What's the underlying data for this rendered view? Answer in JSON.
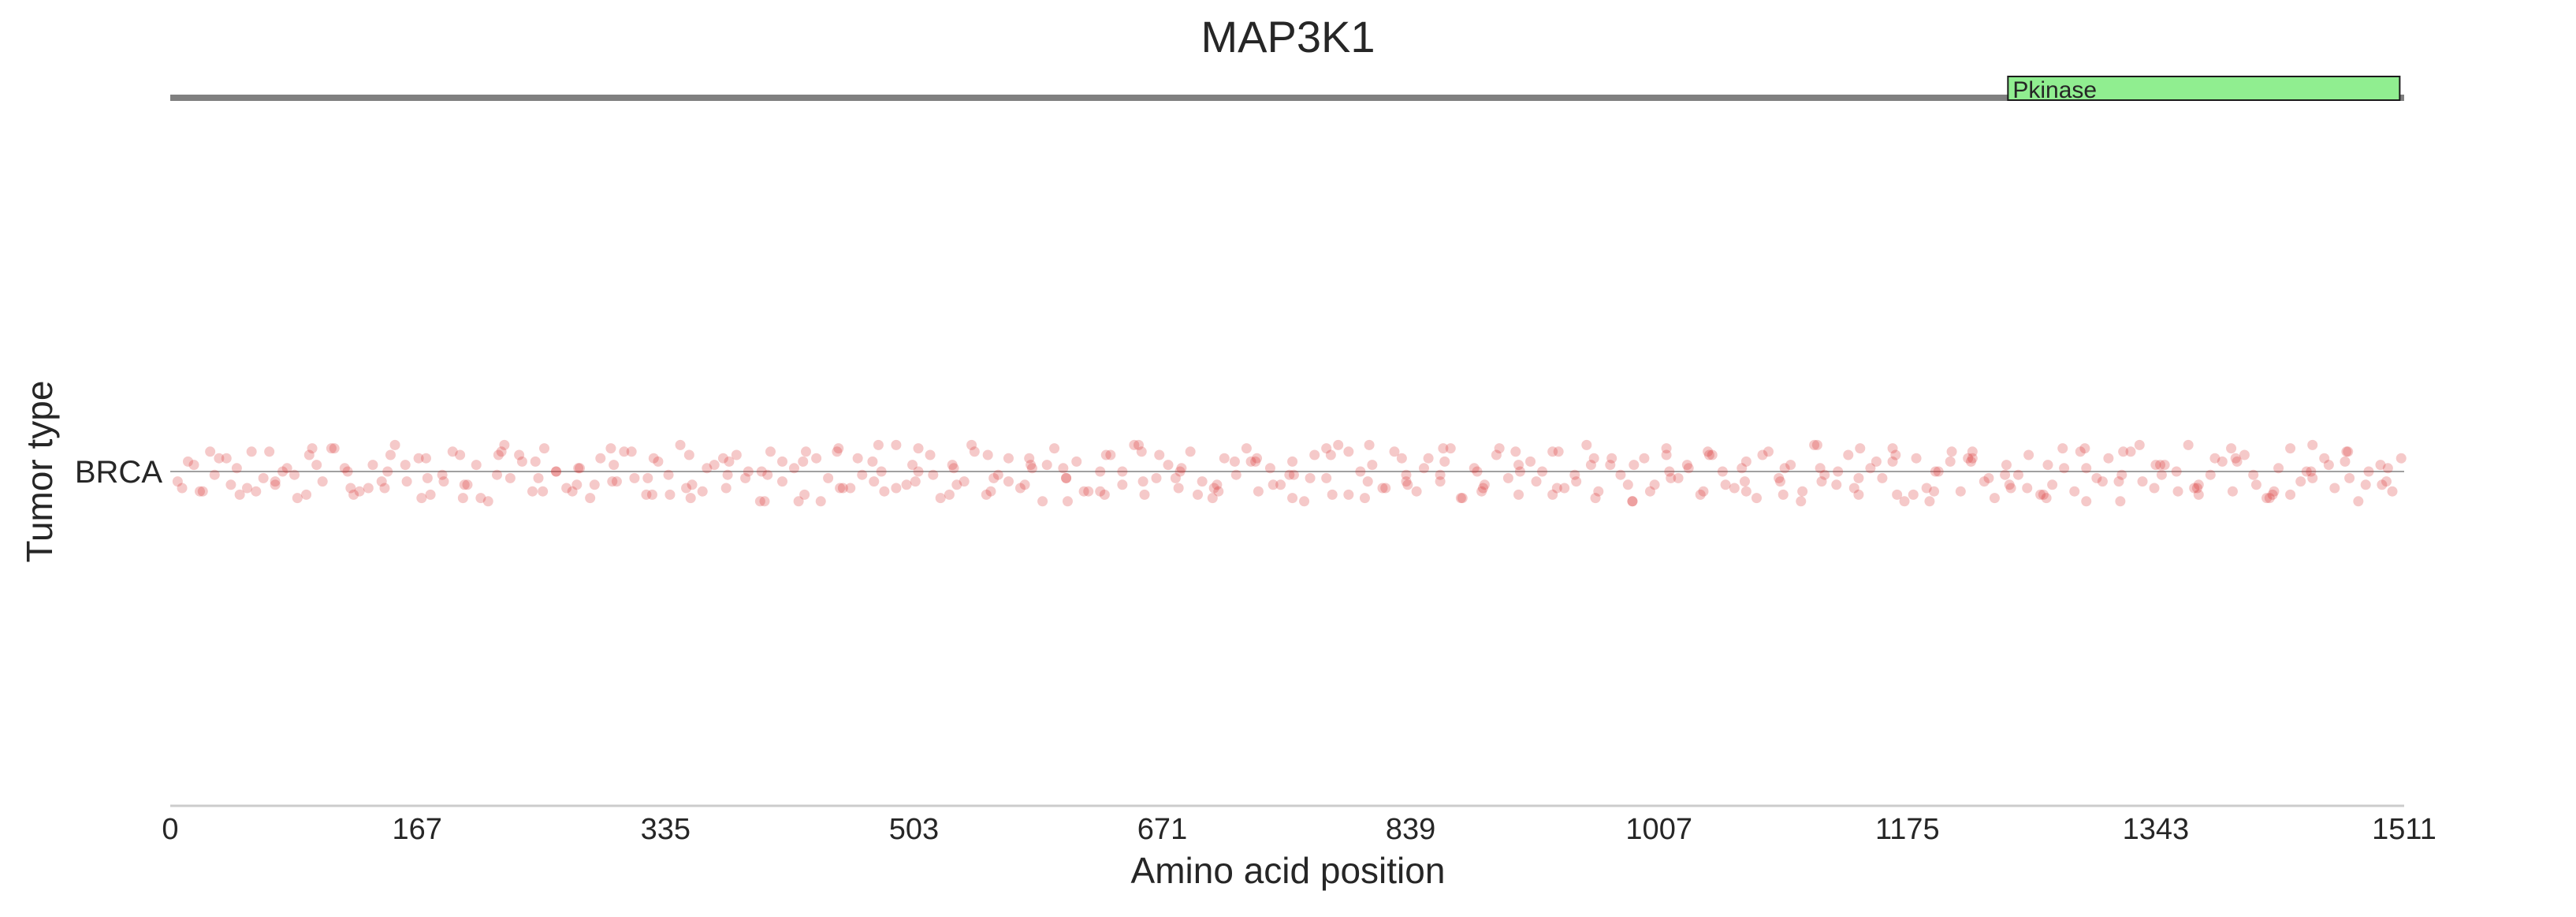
{
  "chart_data": {
    "type": "scatter",
    "title": "MAP3K1",
    "xlabel": "Amino acid position",
    "ylabel": "Tumor type",
    "xlim": [
      0,
      1511
    ],
    "xticks": [
      "0",
      "167",
      "335",
      "503",
      "671",
      "839",
      "1007",
      "1175",
      "1343",
      "1511"
    ],
    "categories": [
      "BRCA"
    ],
    "grid": false,
    "legend": "none",
    "domains": [
      {
        "name": "Pkinase",
        "start": 1243,
        "end": 1508,
        "color": "#90ee90"
      }
    ],
    "point_color": "#d62728",
    "point_alpha": 0.25,
    "series": [
      {
        "category": "BRCA",
        "x": [
          8,
          12,
          22,
          30,
          38,
          47,
          55,
          63,
          71,
          79,
          86,
          94,
          103,
          111,
          120,
          128,
          137,
          145,
          152,
          160,
          168,
          176,
          184,
          191,
          199,
          207,
          215,
          222,
          230,
          238,
          245,
          253,
          261,
          268,
          276,
          284,
          291,
          299,
          307,
          314,
          322,
          330,
          337,
          345,
          353,
          360,
          368,
          376,
          383,
          391,
          399,
          406,
          414,
          422,
          429,
          437,
          445,
          452,
          460,
          468,
          475,
          483,
          491,
          498,
          506,
          514,
          521,
          529,
          537,
          544,
          552,
          560,
          567,
          575,
          583,
          590,
          598,
          606,
          613,
          621,
          629,
          636,
          644,
          652,
          659,
          667,
          675,
          682,
          690,
          698,
          705,
          713,
          721,
          728,
          736,
          744,
          751,
          759,
          767,
          774,
          782,
          790,
          797,
          805,
          813,
          820,
          828,
          836,
          843,
          851,
          859,
          866,
          874,
          882,
          889,
          897,
          905,
          912,
          920,
          928,
          935,
          943,
          951,
          958,
          966,
          974,
          981,
          989,
          997,
          1004,
          1012,
          1020,
          1027,
          1035,
          1043,
          1050,
          1058,
          1066,
          1073,
          1081,
          1089,
          1096,
          1104,
          1112,
          1119,
          1127,
          1135,
          1142,
          1150,
          1158,
          1165,
          1173,
          1181,
          1188,
          1196,
          1204,
          1211,
          1219,
          1227,
          1234,
          1242,
          1250,
          1257,
          1265,
          1273,
          1280,
          1288,
          1296,
          1303,
          1311,
          1319,
          1326,
          1334,
          1342,
          1349,
          1357,
          1365,
          1372,
          1380,
          1388,
          1395,
          1403,
          1411,
          1418,
          1426,
          1434,
          1441,
          1449,
          1457,
          1464,
          1472,
          1480,
          1487,
          1495,
          1503,
          1509,
          16,
          41,
          67,
          92,
          118,
          143,
          170,
          196,
          221,
          247,
          272,
          298,
          323,
          349,
          374,
          400,
          425,
          451,
          476,
          502,
          527,
          553,
          578,
          604,
          629,
          655,
          680,
          706,
          731,
          757,
          782,
          808,
          833,
          859,
          884,
          910,
          935,
          961,
          986,
          1012,
          1037,
          1063,
          1088,
          1114,
          1139,
          1165,
          1190,
          1216,
          1241,
          1267,
          1292,
          1318,
          1343,
          1369,
          1394,
          1420,
          1445,
          1471,
          1496,
          5,
          27,
          52,
          76,
          99,
          124,
          149,
          174,
          201,
          226,
          252,
          277,
          302,
          327,
          352,
          378,
          404,
          430,
          455,
          481,
          506,
          532,
          557,
          582,
          607,
          633,
          658,
          684,
          709,
          735,
          760,
          786,
          811,
          837,
          862,
          888,
          913,
          939,
          964,
          990,
          1015,
          1041,
          1066,
          1092,
          1117,
          1143,
          1168,
          1194,
          1219,
          1245,
          1270,
          1296,
          1321,
          1347,
          1372,
          1398,
          1423,
          1449,
          1474,
          1500,
          33,
          58,
          84,
          109,
          134,
          159,
          185,
          210,
          236,
          261,
          287,
          312,
          338,
          363,
          389,
          414,
          440,
          465,
          491,
          516,
          542,
          567,
          593,
          618,
          644,
          669,
          695,
          720,
          746,
          771,
          797,
          822,
          848,
          873,
          899,
          924,
          950,
          975,
          1001,
          1026,
          1052,
          1077,
          1103,
          1128,
          1154,
          1179,
          1205,
          1230,
          1256,
          1281,
          1307,
          1332,
          1358,
          1383,
          1409,
          1434,
          1460,
          1485,
          20,
          45,
          71,
          96,
          122,
          147,
          173,
          198,
          224,
          249,
          275,
          300,
          326,
          351,
          377,
          402,
          428,
          453,
          479,
          504,
          530,
          555,
          581,
          606,
          632,
          657,
          683,
          708,
          734,
          759,
          785,
          810,
          836,
          861,
          887,
          912,
          938,
          963,
          989,
          1014,
          1040,
          1065,
          1091,
          1116,
          1142,
          1167,
          1193,
          1218,
          1244,
          1269,
          1295,
          1320,
          1346,
          1371,
          1397,
          1422,
          1448,
          1473,
          1499
        ],
        "jitter": [
          0.5,
          -0.3,
          0.6,
          0.1,
          -0.4,
          0.7,
          -0.6,
          0.2,
          0.4,
          -0.1,
          0.8,
          -0.5,
          0.3,
          -0.7,
          0.0,
          0.6,
          -0.2,
          0.5,
          -0.8,
          0.3,
          -0.4,
          0.7,
          0.1,
          -0.6,
          0.4,
          -0.2,
          0.9,
          -0.5,
          0.2,
          -0.3,
          0.6,
          -0.7,
          0.0,
          0.5,
          -0.1,
          0.8,
          -0.4,
          0.3,
          -0.6,
          0.2,
          0.7,
          -0.3,
          0.1,
          -0.8,
          0.4,
          0.6,
          -0.2,
          0.5,
          -0.5,
          0.0,
          0.9,
          -0.6,
          0.3,
          -0.1,
          0.7,
          -0.4,
          0.2,
          -0.7,
          0.5,
          0.1,
          -0.3,
          0.6,
          -0.8,
          0.4,
          0.0,
          -0.5,
          0.8,
          -0.2,
          0.3,
          -0.6,
          0.7,
          0.1,
          -0.4,
          0.5,
          -0.1,
          0.9,
          -0.7,
          0.2,
          -0.3,
          0.6,
          0.0,
          -0.5,
          0.4,
          -0.8,
          0.7,
          0.2,
          -0.2,
          0.5,
          -0.6,
          0.3,
          0.8,
          -0.4,
          0.1,
          -0.7,
          0.6,
          -0.1,
          0.4,
          -0.3,
          0.9,
          -0.5,
          0.2,
          -0.8,
          0.7,
          0.0,
          -0.2,
          0.5,
          -0.6,
          0.3,
          0.6,
          -0.4,
          0.1,
          -0.7,
          0.8,
          -0.1,
          0.4,
          -0.5,
          0.2,
          0.7,
          -0.3,
          0.0,
          -0.6,
          0.5,
          0.3,
          -0.8,
          0.6,
          -0.2,
          0.1,
          0.9,
          -0.4,
          0.4,
          -0.7,
          0.2,
          -0.1,
          0.7,
          -0.5,
          0.0,
          0.5,
          -0.3,
          0.8,
          -0.6,
          0.3,
          -0.2,
          0.6,
          -0.8,
          0.1,
          0.4,
          -0.5,
          0.7,
          -0.1,
          0.2,
          -0.7,
          0.9,
          -0.4,
          0.5,
          0.0,
          -0.3,
          0.6,
          -0.6,
          0.3,
          0.8,
          -0.2,
          0.1,
          -0.5,
          0.7,
          0.4,
          -0.7,
          0.6,
          -0.1,
          0.2,
          -0.4,
          0.9,
          -0.6,
          0.3,
          0.5,
          -0.2,
          0.0,
          -0.8,
          0.7,
          0.1,
          -0.3,
          0.6,
          -0.5,
          0.4,
          0.8,
          -0.1,
          -0.7,
          0.3,
          0.2,
          -0.4,
          0.5,
          -0.6,
          0.9,
          0.0,
          -0.2,
          0.6,
          -0.4,
          -0.2,
          0.4,
          -0.6,
          0.7,
          -0.1,
          0.3,
          0.8,
          -0.5,
          0.1,
          -0.3,
          0.6,
          -0.7,
          0.2,
          0.5,
          -0.4,
          0.0,
          0.9,
          -0.6,
          0.3,
          -0.2,
          0.7,
          -0.5,
          0.4,
          -0.1,
          0.6,
          -0.8,
          0.2,
          0.5,
          -0.3,
          0.1,
          -0.7,
          0.8,
          -0.4,
          0.3,
          0.0,
          -0.6,
          0.7,
          -0.2,
          0.4,
          -0.5,
          0.6,
          -0.1,
          0.2,
          -0.8,
          0.5,
          -0.3,
          0.9,
          -0.4,
          0.1,
          0.7,
          -0.6,
          0.3,
          -0.2,
          0.5,
          -0.7,
          0.8,
          0.0,
          -0.3,
          0.4,
          0.3,
          -0.6,
          0.5,
          0.0,
          -0.2,
          0.7,
          -0.5,
          0.2,
          0.4,
          -0.8,
          0.6,
          -0.1,
          0.3,
          -0.4,
          0.8,
          -0.3,
          0.1,
          -0.6,
          0.5,
          0.0,
          -0.7,
          0.4,
          0.2,
          -0.2,
          0.9,
          -0.5,
          0.3,
          -0.1,
          0.6,
          -0.4,
          0.1,
          0.7,
          -0.8,
          0.4,
          -0.3,
          0.5,
          0.0,
          -0.6,
          0.8,
          -0.2,
          0.2,
          -0.5,
          0.6,
          -0.1,
          0.3,
          -0.7,
          0.7,
          0.0,
          -0.4,
          0.5,
          -0.2,
          0.9,
          -0.6,
          0.1,
          0.4,
          -0.3,
          0.6,
          -0.8,
          0.2,
          -0.1,
          -0.4,
          0.6,
          0.1,
          -0.7,
          0.5,
          -0.2,
          0.3,
          0.8,
          -0.5,
          0.0,
          0.4,
          -0.6,
          0.7,
          -0.1,
          0.2,
          -0.3,
          0.9,
          -0.4,
          0.5,
          0.1,
          -0.8,
          0.3,
          -0.2,
          0.6,
          0.0,
          -0.5,
          0.7,
          -0.3,
          0.4,
          0.2,
          -0.6,
          0.5,
          -0.1,
          0.8,
          -0.7,
          0.3,
          0.1,
          -0.4,
          0.6,
          -0.2,
          0.4,
          -0.5,
          0.9,
          0.0,
          -0.3,
          0.7,
          -0.6,
          0.2,
          0.5,
          -0.1,
          0.3,
          -0.8,
          0.6,
          -0.4,
          0.1,
          0.7,
          -0.2,
          0.4,
          0.6,
          -0.1,
          0.3,
          -0.7,
          0.5,
          0.0,
          -0.4,
          0.8,
          -0.6,
          0.2,
          0.4,
          -0.2,
          0.7,
          -0.5,
          0.1,
          0.9,
          -0.3,
          0.5,
          -0.8,
          0.3,
          -0.1,
          0.6,
          -0.4,
          0.2,
          0.7,
          -0.6,
          0.0,
          0.4,
          -0.3,
          0.8,
          -0.5,
          0.3,
          0.1,
          -0.7,
          0.6,
          -0.2,
          0.5,
          -0.4,
          0.9,
          0.0,
          -0.6,
          0.3,
          0.7,
          -0.1,
          0.2,
          -0.5,
          0.6,
          -0.3,
          0.4,
          0.8,
          -0.7,
          0.1,
          -0.2,
          0.5,
          -0.4,
          0.7,
          0.0,
          -0.6,
          0.3
        ]
      }
    ]
  }
}
